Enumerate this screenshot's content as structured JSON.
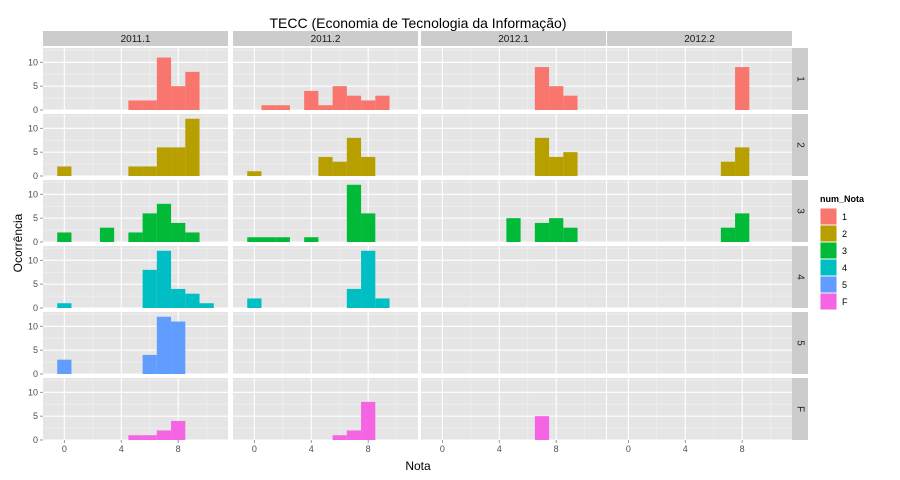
{
  "chart_data": {
    "type": "histogram-facet",
    "title": "TECC (Economia de Tecnologia da Informação)",
    "xlabel": "Nota",
    "ylabel": "Ocorrência",
    "cols": [
      "2011.1",
      "2011.2",
      "2012.1",
      "2012.2"
    ],
    "rows": [
      "1",
      "2",
      "3",
      "4",
      "5",
      "F"
    ],
    "xlim": [
      -1.5,
      11.5
    ],
    "ylim": [
      0,
      13
    ],
    "xticks": [
      0,
      4,
      8
    ],
    "yticks": [
      0,
      5,
      10
    ],
    "bin_width": 1,
    "grid": true,
    "legend": {
      "title": "num_Nota",
      "position": "right",
      "items": [
        {
          "label": "1",
          "color": "#F8766D"
        },
        {
          "label": "2",
          "color": "#B79F00"
        },
        {
          "label": "3",
          "color": "#00BA38"
        },
        {
          "label": "4",
          "color": "#00BFC4"
        },
        {
          "label": "5",
          "color": "#619CFF"
        },
        {
          "label": "F",
          "color": "#F564E3"
        }
      ]
    },
    "panels": [
      {
        "row": "1",
        "col": "2011.1",
        "bins": [
          [
            5,
            2
          ],
          [
            6,
            2
          ],
          [
            7,
            11
          ],
          [
            8,
            5
          ],
          [
            9,
            8
          ]
        ]
      },
      {
        "row": "1",
        "col": "2011.2",
        "bins": [
          [
            1,
            1
          ],
          [
            2,
            1
          ],
          [
            4,
            4
          ],
          [
            5,
            1
          ],
          [
            6,
            5
          ],
          [
            7,
            3
          ],
          [
            8,
            2
          ],
          [
            9,
            3
          ]
        ]
      },
      {
        "row": "1",
        "col": "2012.1",
        "bins": [
          [
            7,
            9
          ],
          [
            8,
            5
          ],
          [
            9,
            3
          ]
        ]
      },
      {
        "row": "1",
        "col": "2012.2",
        "bins": [
          [
            8,
            9
          ]
        ]
      },
      {
        "row": "2",
        "col": "2011.1",
        "bins": [
          [
            0,
            2
          ],
          [
            5,
            2
          ],
          [
            6,
            2
          ],
          [
            7,
            6
          ],
          [
            8,
            6
          ],
          [
            9,
            12
          ]
        ]
      },
      {
        "row": "2",
        "col": "2011.2",
        "bins": [
          [
            0,
            1
          ],
          [
            5,
            4
          ],
          [
            6,
            3
          ],
          [
            7,
            8
          ],
          [
            8,
            4
          ]
        ]
      },
      {
        "row": "2",
        "col": "2012.1",
        "bins": [
          [
            7,
            8
          ],
          [
            8,
            4
          ],
          [
            9,
            5
          ]
        ]
      },
      {
        "row": "2",
        "col": "2012.2",
        "bins": [
          [
            7,
            3
          ],
          [
            8,
            6
          ]
        ]
      },
      {
        "row": "3",
        "col": "2011.1",
        "bins": [
          [
            0,
            2
          ],
          [
            3,
            3
          ],
          [
            5,
            2
          ],
          [
            6,
            6
          ],
          [
            7,
            8
          ],
          [
            8,
            4
          ],
          [
            9,
            2
          ]
        ]
      },
      {
        "row": "3",
        "col": "2011.2",
        "bins": [
          [
            0,
            1
          ],
          [
            1,
            1
          ],
          [
            2,
            1
          ],
          [
            4,
            1
          ],
          [
            7,
            12
          ],
          [
            8,
            6
          ]
        ]
      },
      {
        "row": "3",
        "col": "2012.1",
        "bins": [
          [
            5,
            5
          ],
          [
            7,
            4
          ],
          [
            8,
            5
          ],
          [
            9,
            3
          ]
        ]
      },
      {
        "row": "3",
        "col": "2012.2",
        "bins": [
          [
            7,
            3
          ],
          [
            8,
            6
          ]
        ]
      },
      {
        "row": "4",
        "col": "2011.1",
        "bins": [
          [
            0,
            1
          ],
          [
            6,
            8
          ],
          [
            7,
            12
          ],
          [
            8,
            4
          ],
          [
            9,
            3
          ],
          [
            10,
            1
          ]
        ]
      },
      {
        "row": "4",
        "col": "2011.2",
        "bins": [
          [
            0,
            2
          ],
          [
            7,
            4
          ],
          [
            8,
            12
          ],
          [
            9,
            2
          ]
        ]
      },
      {
        "row": "5",
        "col": "2011.1",
        "bins": [
          [
            0,
            3
          ],
          [
            6,
            4
          ],
          [
            7,
            12
          ],
          [
            8,
            11
          ]
        ]
      },
      {
        "row": "F",
        "col": "2011.1",
        "bins": [
          [
            5,
            1
          ],
          [
            6,
            1
          ],
          [
            7,
            2
          ],
          [
            8,
            4
          ]
        ]
      },
      {
        "row": "F",
        "col": "2011.2",
        "bins": [
          [
            6,
            1
          ],
          [
            7,
            2
          ],
          [
            8,
            8
          ]
        ]
      },
      {
        "row": "F",
        "col": "2012.1",
        "bins": [
          [
            7,
            5
          ]
        ]
      }
    ]
  }
}
